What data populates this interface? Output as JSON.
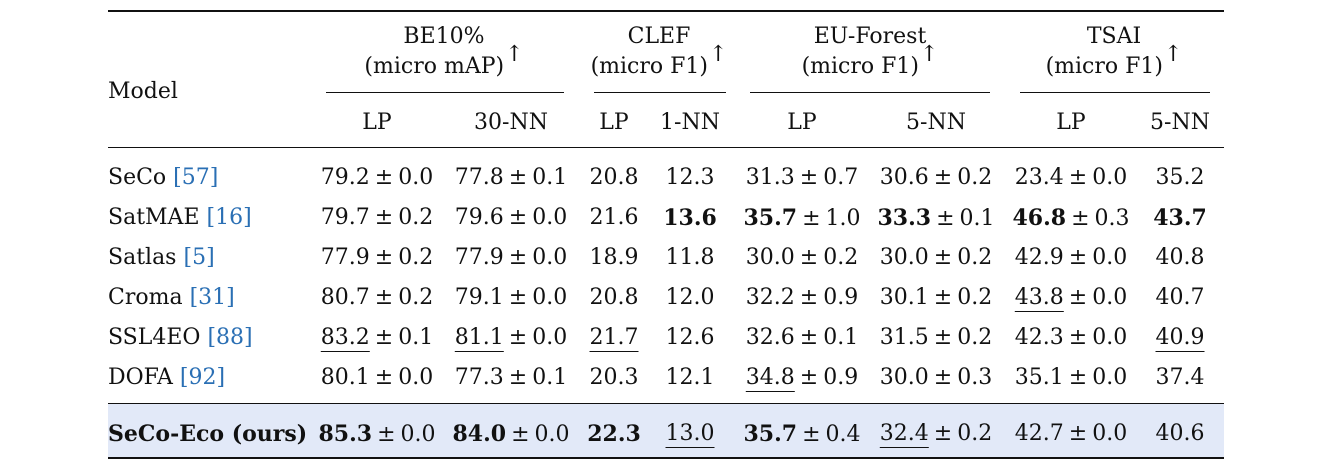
{
  "header": {
    "model_label": "Model",
    "arrow": "↑",
    "groups": [
      {
        "name": "BE10%",
        "metric": "(micro mAP)"
      },
      {
        "name": "CLEF",
        "metric": "(micro F1)"
      },
      {
        "name": "EU-Forest",
        "metric": "(micro F1)"
      },
      {
        "name": "TSAI",
        "metric": "(micro F1)"
      }
    ],
    "subcols": [
      "LP",
      "30-NN",
      "LP",
      "1-NN",
      "LP",
      "5-NN",
      "LP",
      "5-NN"
    ]
  },
  "pm": "±",
  "rows": [
    {
      "model": "SeCo",
      "ref": "[57]",
      "cells": [
        {
          "v": "79.2",
          "s": "0.0"
        },
        {
          "v": "77.8",
          "s": "0.1"
        },
        {
          "v": "20.8"
        },
        {
          "v": "12.3"
        },
        {
          "v": "31.3",
          "s": "0.7"
        },
        {
          "v": "30.6",
          "s": "0.2"
        },
        {
          "v": "23.4",
          "s": "0.0"
        },
        {
          "v": "35.2"
        }
      ]
    },
    {
      "model": "SatMAE",
      "ref": "[16]",
      "cells": [
        {
          "v": "79.7",
          "s": "0.2"
        },
        {
          "v": "79.6",
          "s": "0.0"
        },
        {
          "v": "21.6"
        },
        {
          "v": "13.6",
          "b": true
        },
        {
          "v": "35.7",
          "s": "1.0",
          "b": true
        },
        {
          "v": "33.3",
          "s": "0.1",
          "b": true
        },
        {
          "v": "46.8",
          "s": "0.3",
          "b": true
        },
        {
          "v": "43.7",
          "b": true
        }
      ]
    },
    {
      "model": "Satlas",
      "ref": "[5]",
      "cells": [
        {
          "v": "77.9",
          "s": "0.2"
        },
        {
          "v": "77.9",
          "s": "0.0"
        },
        {
          "v": "18.9"
        },
        {
          "v": "11.8"
        },
        {
          "v": "30.0",
          "s": "0.2"
        },
        {
          "v": "30.0",
          "s": "0.2"
        },
        {
          "v": "42.9",
          "s": "0.0"
        },
        {
          "v": "40.8"
        }
      ]
    },
    {
      "model": "Croma",
      "ref": "[31]",
      "cells": [
        {
          "v": "80.7",
          "s": "0.2"
        },
        {
          "v": "79.1",
          "s": "0.0"
        },
        {
          "v": "20.8"
        },
        {
          "v": "12.0"
        },
        {
          "v": "32.2",
          "s": "0.9"
        },
        {
          "v": "30.1",
          "s": "0.2"
        },
        {
          "v": "43.8",
          "s": "0.0",
          "u": true
        },
        {
          "v": "40.7"
        }
      ]
    },
    {
      "model": "SSL4EO",
      "ref": "[88]",
      "cells": [
        {
          "v": "83.2",
          "s": "0.1",
          "u": true
        },
        {
          "v": "81.1",
          "s": "0.0",
          "u": true
        },
        {
          "v": "21.7",
          "u": true
        },
        {
          "v": "12.6"
        },
        {
          "v": "32.6",
          "s": "0.1"
        },
        {
          "v": "31.5",
          "s": "0.2"
        },
        {
          "v": "42.3",
          "s": "0.0"
        },
        {
          "v": "40.9",
          "u": true
        }
      ]
    },
    {
      "model": "DOFA",
      "ref": "[92]",
      "cells": [
        {
          "v": "80.1",
          "s": "0.0"
        },
        {
          "v": "77.3",
          "s": "0.1"
        },
        {
          "v": "20.3"
        },
        {
          "v": "12.1"
        },
        {
          "v": "34.8",
          "s": "0.9",
          "u": true
        },
        {
          "v": "30.0",
          "s": "0.3"
        },
        {
          "v": "35.1",
          "s": "0.0"
        },
        {
          "v": "37.4"
        }
      ]
    },
    {
      "model": "SeCo-Eco (ours)",
      "ref": "",
      "bold": true,
      "cells": [
        {
          "v": "85.3",
          "s": "0.0",
          "b": true
        },
        {
          "v": "84.0",
          "s": "0.0",
          "b": true
        },
        {
          "v": "22.3",
          "b": true
        },
        {
          "v": "13.0",
          "u": true
        },
        {
          "v": "35.7",
          "s": "0.4",
          "b": true
        },
        {
          "v": "32.4",
          "s": "0.2",
          "u": true
        },
        {
          "v": "42.7",
          "s": "0.0"
        },
        {
          "v": "40.6"
        }
      ]
    }
  ]
}
